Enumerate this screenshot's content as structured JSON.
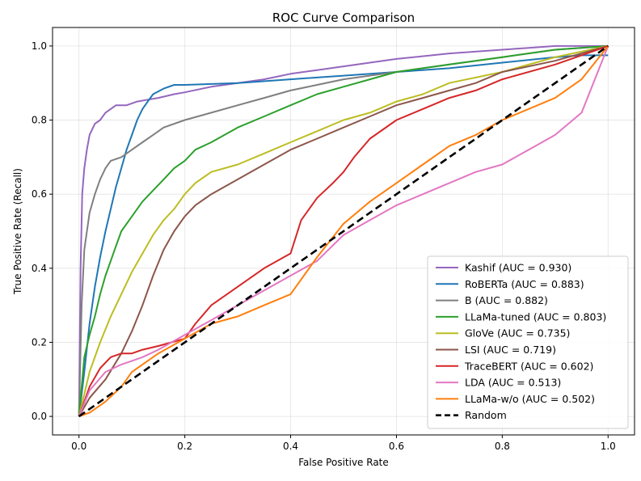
{
  "chart_data": {
    "type": "line",
    "title": "ROC Curve Comparison",
    "xlabel": "False Positive Rate",
    "ylabel": "True Positive Rate (Recall)",
    "xlim": [
      -0.05,
      1.05
    ],
    "ylim": [
      -0.05,
      1.05
    ],
    "xticks": [
      0.0,
      0.2,
      0.4,
      0.6,
      0.8,
      1.0
    ],
    "yticks": [
      0.0,
      0.2,
      0.4,
      0.6,
      0.8,
      1.0
    ],
    "tick_labels": [
      "0.0",
      "0.2",
      "0.4",
      "0.6",
      "0.8",
      "1.0"
    ],
    "grid": true,
    "legend_position": "lower-right",
    "series": [
      {
        "name": "Kashif (AUC = 0.930)",
        "color": "#9467bd",
        "x": [
          0,
          0.003,
          0.006,
          0.01,
          0.015,
          0.02,
          0.03,
          0.04,
          0.05,
          0.06,
          0.07,
          0.09,
          0.11,
          0.13,
          0.15,
          0.18,
          0.2,
          0.25,
          0.3,
          0.35,
          0.4,
          0.45,
          0.5,
          0.55,
          0.6,
          0.7,
          0.8,
          0.85,
          0.9,
          1.0
        ],
        "y": [
          0,
          0.4,
          0.6,
          0.67,
          0.72,
          0.76,
          0.79,
          0.8,
          0.82,
          0.83,
          0.84,
          0.84,
          0.85,
          0.855,
          0.86,
          0.87,
          0.875,
          0.89,
          0.9,
          0.91,
          0.925,
          0.935,
          0.945,
          0.955,
          0.965,
          0.98,
          0.99,
          0.995,
          1.0,
          1.0
        ]
      },
      {
        "name": "RoBERTa (AUC = 0.883)",
        "color": "#1f77b4",
        "x": [
          0,
          0.01,
          0.02,
          0.03,
          0.04,
          0.05,
          0.06,
          0.07,
          0.08,
          0.09,
          0.1,
          0.11,
          0.12,
          0.13,
          0.14,
          0.16,
          0.18,
          0.2,
          0.3,
          0.4,
          0.5,
          0.6,
          0.7,
          0.8,
          0.9,
          0.95,
          1.0
        ],
        "y": [
          0,
          0.12,
          0.25,
          0.35,
          0.43,
          0.5,
          0.56,
          0.62,
          0.67,
          0.72,
          0.76,
          0.8,
          0.83,
          0.85,
          0.87,
          0.885,
          0.895,
          0.895,
          0.9,
          0.91,
          0.92,
          0.93,
          0.94,
          0.955,
          0.97,
          0.975,
          0.975
        ]
      },
      {
        "name": "B (AUC = 0.882)",
        "color": "#7f7f7f",
        "x": [
          0,
          0.005,
          0.01,
          0.02,
          0.03,
          0.04,
          0.05,
          0.06,
          0.08,
          0.1,
          0.12,
          0.14,
          0.16,
          0.2,
          0.25,
          0.3,
          0.35,
          0.4,
          0.45,
          0.5,
          0.6,
          0.7,
          0.8,
          0.9,
          1.0
        ],
        "y": [
          0,
          0.3,
          0.45,
          0.55,
          0.6,
          0.64,
          0.67,
          0.69,
          0.7,
          0.72,
          0.74,
          0.76,
          0.78,
          0.8,
          0.82,
          0.84,
          0.86,
          0.88,
          0.895,
          0.91,
          0.93,
          0.95,
          0.97,
          0.99,
          1.0
        ]
      },
      {
        "name": "LLaMa-tuned (AUC = 0.803)",
        "color": "#2ca02c",
        "x": [
          0,
          0.01,
          0.02,
          0.03,
          0.04,
          0.05,
          0.06,
          0.07,
          0.08,
          0.1,
          0.12,
          0.14,
          0.16,
          0.18,
          0.2,
          0.22,
          0.25,
          0.3,
          0.35,
          0.4,
          0.45,
          0.5,
          0.55,
          0.6,
          0.7,
          0.8,
          0.9,
          1.0
        ],
        "y": [
          0,
          0.16,
          0.22,
          0.27,
          0.33,
          0.38,
          0.42,
          0.46,
          0.5,
          0.54,
          0.58,
          0.61,
          0.64,
          0.67,
          0.69,
          0.72,
          0.74,
          0.78,
          0.81,
          0.84,
          0.87,
          0.89,
          0.91,
          0.93,
          0.95,
          0.97,
          0.99,
          1.0
        ]
      },
      {
        "name": "GloVe (AUC = 0.735)",
        "color": "#bcbd22",
        "x": [
          0,
          0.01,
          0.02,
          0.04,
          0.06,
          0.08,
          0.1,
          0.12,
          0.14,
          0.16,
          0.18,
          0.2,
          0.22,
          0.25,
          0.3,
          0.35,
          0.4,
          0.45,
          0.5,
          0.55,
          0.6,
          0.65,
          0.7,
          0.8,
          0.9,
          1.0
        ],
        "y": [
          0,
          0.06,
          0.12,
          0.2,
          0.27,
          0.33,
          0.39,
          0.44,
          0.49,
          0.53,
          0.56,
          0.6,
          0.63,
          0.66,
          0.68,
          0.71,
          0.74,
          0.77,
          0.8,
          0.82,
          0.85,
          0.87,
          0.9,
          0.93,
          0.97,
          1.0
        ]
      },
      {
        "name": "LSI (AUC = 0.719)",
        "color": "#8c564b",
        "x": [
          0,
          0.02,
          0.05,
          0.08,
          0.1,
          0.12,
          0.14,
          0.16,
          0.18,
          0.2,
          0.22,
          0.25,
          0.3,
          0.35,
          0.4,
          0.45,
          0.5,
          0.55,
          0.6,
          0.65,
          0.7,
          0.75,
          0.8,
          0.9,
          1.0
        ],
        "y": [
          0,
          0.05,
          0.1,
          0.17,
          0.23,
          0.3,
          0.38,
          0.45,
          0.5,
          0.54,
          0.57,
          0.6,
          0.64,
          0.68,
          0.72,
          0.75,
          0.78,
          0.81,
          0.84,
          0.86,
          0.88,
          0.9,
          0.93,
          0.96,
          1.0
        ]
      },
      {
        "name": "TraceBERT (AUC = 0.602)",
        "color": "#d62728",
        "x": [
          0,
          0.02,
          0.04,
          0.06,
          0.08,
          0.1,
          0.12,
          0.15,
          0.2,
          0.22,
          0.25,
          0.3,
          0.35,
          0.4,
          0.42,
          0.45,
          0.48,
          0.5,
          0.52,
          0.55,
          0.6,
          0.65,
          0.7,
          0.75,
          0.8,
          0.9,
          1.0
        ],
        "y": [
          0,
          0.08,
          0.13,
          0.16,
          0.17,
          0.17,
          0.18,
          0.19,
          0.21,
          0.25,
          0.3,
          0.35,
          0.4,
          0.44,
          0.53,
          0.59,
          0.63,
          0.66,
          0.7,
          0.75,
          0.8,
          0.83,
          0.86,
          0.88,
          0.91,
          0.95,
          1.0
        ]
      },
      {
        "name": "LDA (AUC = 0.513)",
        "color": "#e377c2",
        "x": [
          0,
          0.02,
          0.05,
          0.08,
          0.1,
          0.12,
          0.15,
          0.2,
          0.25,
          0.3,
          0.35,
          0.4,
          0.45,
          0.5,
          0.55,
          0.6,
          0.65,
          0.7,
          0.75,
          0.8,
          0.85,
          0.9,
          0.95,
          1.0
        ],
        "y": [
          0,
          0.07,
          0.12,
          0.14,
          0.15,
          0.16,
          0.18,
          0.22,
          0.26,
          0.3,
          0.34,
          0.38,
          0.42,
          0.49,
          0.53,
          0.57,
          0.6,
          0.63,
          0.66,
          0.68,
          0.72,
          0.76,
          0.82,
          1.0
        ]
      },
      {
        "name": "LLaMa-w/o (AUC = 0.502)",
        "color": "#ff7f0e",
        "x": [
          0,
          0.02,
          0.05,
          0.08,
          0.1,
          0.12,
          0.15,
          0.2,
          0.25,
          0.3,
          0.35,
          0.4,
          0.45,
          0.5,
          0.55,
          0.6,
          0.65,
          0.7,
          0.75,
          0.8,
          0.85,
          0.9,
          0.95,
          1.0
        ],
        "y": [
          0,
          0.01,
          0.04,
          0.08,
          0.12,
          0.14,
          0.17,
          0.21,
          0.25,
          0.27,
          0.3,
          0.33,
          0.43,
          0.52,
          0.58,
          0.63,
          0.68,
          0.73,
          0.76,
          0.8,
          0.83,
          0.86,
          0.91,
          1.0
        ]
      },
      {
        "name": "Random",
        "color": "#000000",
        "dashed": true,
        "x": [
          0,
          1
        ],
        "y": [
          0,
          1
        ]
      }
    ]
  }
}
